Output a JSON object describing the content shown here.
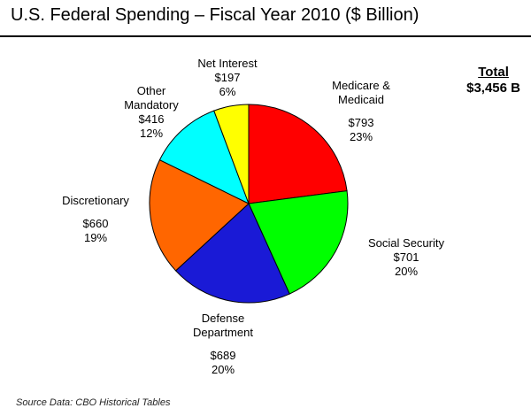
{
  "header": {
    "title": "U.S. Federal Spending – Fiscal Year 2010 ($ Billion)"
  },
  "total": {
    "label": "Total",
    "value": "$3,456 B"
  },
  "source": "Source Data:  CBO Historical Tables",
  "colors": {
    "medicare": "#ff0000",
    "social_security": "#00ff00",
    "defense": "#1a1ad6",
    "discretionary": "#ff6600",
    "other_mandatory": "#00ffff",
    "net_interest": "#ffff00"
  },
  "chart_data": {
    "type": "pie",
    "title": "U.S. Federal Spending – Fiscal Year 2010 ($ Billion)",
    "total": 3456,
    "slices": [
      {
        "key": "medicare",
        "label_lines": [
          "Medicare &",
          "Medicaid"
        ],
        "value": 793,
        "value_label": "$793",
        "percent_label": "23%"
      },
      {
        "key": "social_security",
        "label_lines": [
          "Social Security"
        ],
        "value": 701,
        "value_label": "$701",
        "percent_label": "20%"
      },
      {
        "key": "defense",
        "label_lines": [
          "Defense",
          "Department"
        ],
        "value": 689,
        "value_label": "$689",
        "percent_label": "20%"
      },
      {
        "key": "discretionary",
        "label_lines": [
          "Discretionary"
        ],
        "value": 660,
        "value_label": "$660",
        "percent_label": "19%"
      },
      {
        "key": "other_mandatory",
        "label_lines": [
          "Other",
          "Mandatory"
        ],
        "value": 416,
        "value_label": "$416",
        "percent_label": "12%"
      },
      {
        "key": "net_interest",
        "label_lines": [
          "Net Interest"
        ],
        "value": 197,
        "value_label": "$197",
        "percent_label": "6%"
      }
    ]
  }
}
